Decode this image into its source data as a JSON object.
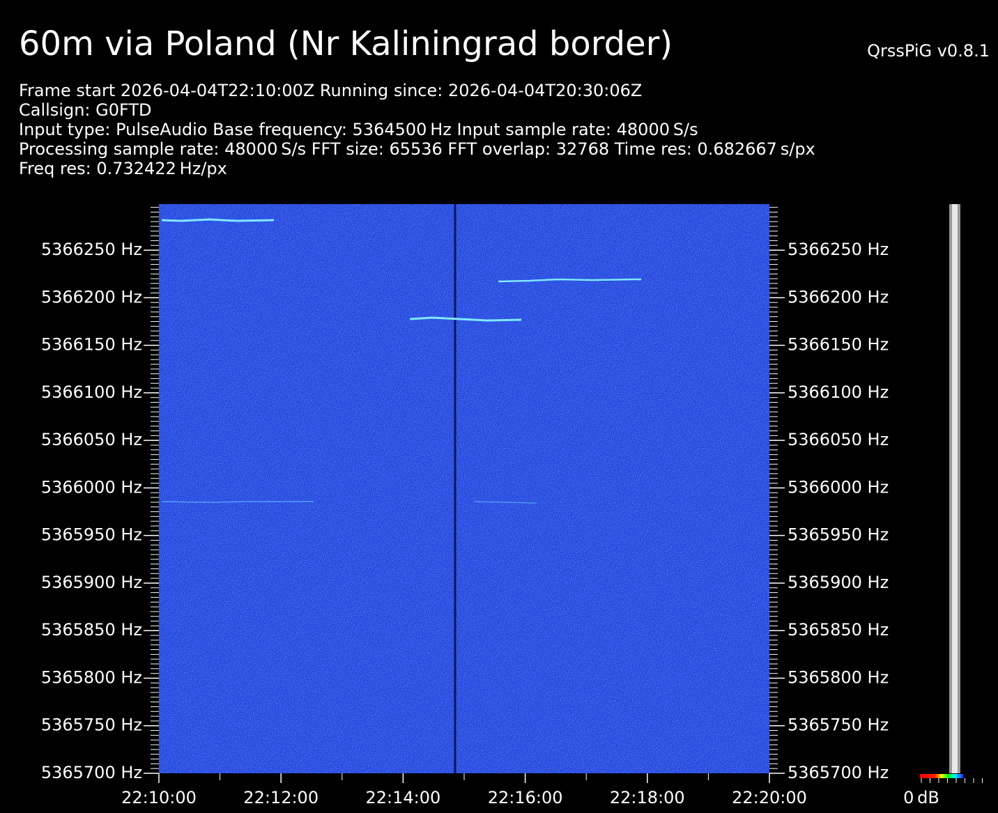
{
  "chart_data": {
    "type": "spectrogram",
    "title": "60m via Poland (Nr Kaliningrad border)",
    "software": "QrssPiG v0.8.1",
    "info": [
      "Frame start 2026-04-04T22:10:00Z Running since: 2026-04-04T20:30:06Z",
      "Callsign: G0FTD",
      "Input type: PulseAudio Base frequency: 5364500 Hz Input sample rate: 48000 S/s",
      "Processing sample rate: 48000 S/s FFT size: 65536 FFT overlap: 32768 Time res: 0.682667 s/px",
      "Freq res: 0.732422 Hz/px"
    ],
    "xlim": [
      "22:10:00",
      "22:20:00"
    ],
    "xticks": [
      "22:10:00",
      "22:12:00",
      "22:14:00",
      "22:16:00",
      "22:18:00",
      "22:20:00"
    ],
    "ylim": [
      5365700,
      5366298.4
    ],
    "yticks": [
      {
        "value": 5366250,
        "label": "5366250 Hz"
      },
      {
        "value": 5366200,
        "label": "5366200 Hz"
      },
      {
        "value": 5366150,
        "label": "5366150 Hz"
      },
      {
        "value": 5366100,
        "label": "5366100 Hz"
      },
      {
        "value": 5366050,
        "label": "5366050 Hz"
      },
      {
        "value": 5366000,
        "label": "5366000 Hz"
      },
      {
        "value": 5365950,
        "label": "5365950 Hz"
      },
      {
        "value": 5365900,
        "label": "5365900 Hz"
      },
      {
        "value": 5365850,
        "label": "5365850 Hz"
      },
      {
        "value": 5365800,
        "label": "5365800 Hz"
      },
      {
        "value": 5365750,
        "label": "5365750 Hz"
      },
      {
        "value": 5365700,
        "label": "5365700 Hz"
      }
    ],
    "colorbar_label": "0 dB"
  }
}
